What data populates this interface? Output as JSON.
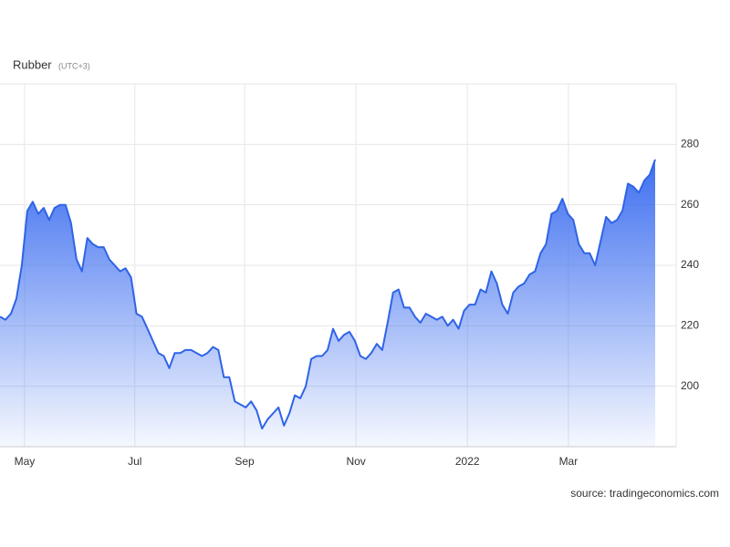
{
  "chart_data": {
    "type": "area",
    "title": "Rubber",
    "subtitle": "(UTC+3)",
    "source": "source: tradingeconomics.com",
    "color": "#2f64e6",
    "values": [
      223,
      222,
      224,
      229,
      240,
      258,
      261,
      257,
      259,
      255,
      259,
      260,
      260,
      254,
      242,
      238,
      249,
      247,
      246,
      246,
      242,
      240,
      238,
      239,
      236,
      224,
      223,
      219,
      215,
      211,
      210,
      206,
      211,
      211,
      212,
      212,
      211,
      210,
      211,
      213,
      212,
      203,
      203,
      195,
      194,
      193,
      195,
      192,
      186,
      189,
      191,
      193,
      187,
      191,
      197,
      196,
      200,
      209,
      210,
      210,
      212,
      219,
      215,
      217,
      218,
      215,
      210,
      209,
      211,
      214,
      212,
      221,
      231,
      232,
      226,
      226,
      223,
      221,
      224,
      223,
      222,
      223,
      220,
      222,
      219,
      225,
      227,
      227,
      232,
      231,
      238,
      234,
      227,
      224,
      231,
      233,
      234,
      237,
      238,
      244,
      247,
      257,
      258,
      262,
      257,
      255,
      247,
      244,
      244,
      240,
      248,
      256,
      254,
      255,
      258,
      267,
      266,
      264,
      268,
      270,
      275
    ],
    "xlim": [
      0,
      122.5
    ],
    "xticks": [
      {
        "value": 4.5,
        "label": "May"
      },
      {
        "value": 24.7,
        "label": "Jul"
      },
      {
        "value": 44.8,
        "label": "Sep"
      },
      {
        "value": 65.2,
        "label": "Nov"
      },
      {
        "value": 85.6,
        "label": "2022"
      },
      {
        "value": 104.1,
        "label": "Mar"
      }
    ],
    "ylim": [
      180,
      300
    ],
    "yticks": [
      200,
      220,
      240,
      260,
      280
    ],
    "grid": true
  }
}
